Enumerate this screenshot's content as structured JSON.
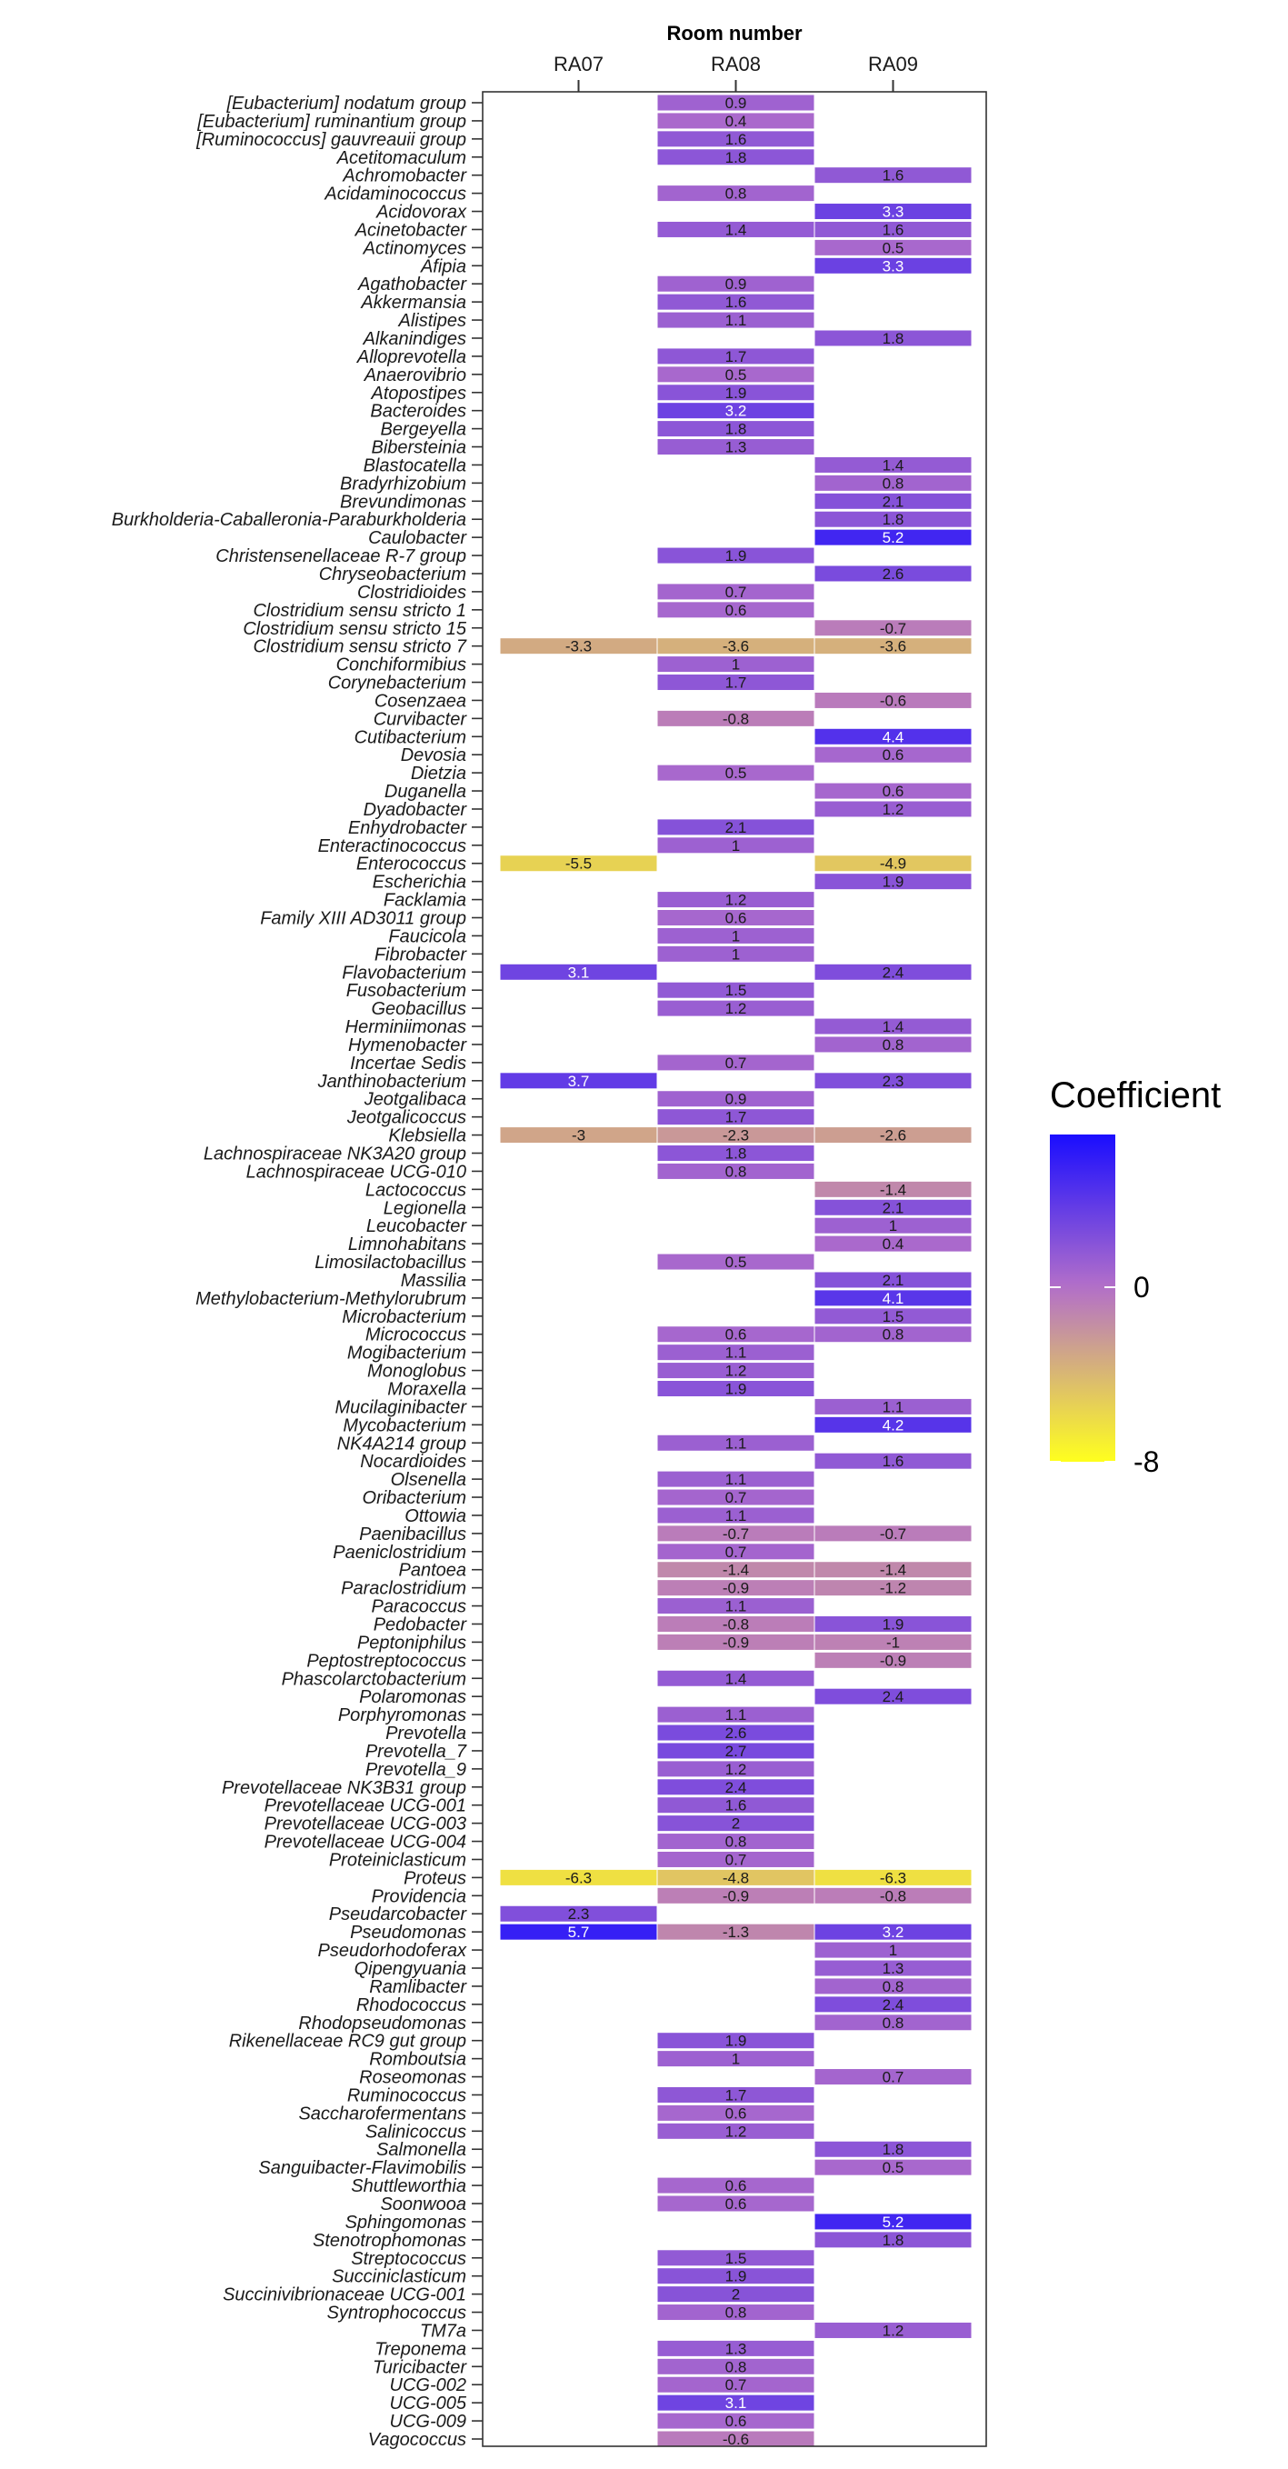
{
  "chart_data": {
    "type": "heatmap",
    "title": "Room number",
    "columns": [
      "RA07",
      "RA08",
      "RA09"
    ],
    "legend": {
      "title": "Coefficient",
      "tick_labels": [
        "0",
        "-8"
      ],
      "ticks": [
        0,
        -8
      ],
      "range": [
        -8,
        7
      ],
      "low_color": "#ffff1e",
      "mid_color": "#b36fc9",
      "high_color": "#1a0dff"
    },
    "rows": [
      {
        "genus": "[Eubacterium] nodatum group",
        "values": [
          null,
          0.9,
          null
        ]
      },
      {
        "genus": "[Eubacterium] ruminantium group",
        "values": [
          null,
          0.4,
          null
        ]
      },
      {
        "genus": "[Ruminococcus] gauvreauii group",
        "values": [
          null,
          1.6,
          null
        ]
      },
      {
        "genus": "Acetitomaculum",
        "values": [
          null,
          1.8,
          null
        ]
      },
      {
        "genus": "Achromobacter",
        "values": [
          null,
          null,
          1.6
        ]
      },
      {
        "genus": "Acidaminococcus",
        "values": [
          null,
          0.8,
          null
        ]
      },
      {
        "genus": "Acidovorax",
        "values": [
          null,
          null,
          3.3
        ]
      },
      {
        "genus": "Acinetobacter",
        "values": [
          null,
          1.4,
          1.6
        ]
      },
      {
        "genus": "Actinomyces",
        "values": [
          null,
          null,
          0.5
        ]
      },
      {
        "genus": "Afipia",
        "values": [
          null,
          null,
          3.3
        ]
      },
      {
        "genus": "Agathobacter",
        "values": [
          null,
          0.9,
          null
        ]
      },
      {
        "genus": "Akkermansia",
        "values": [
          null,
          1.6,
          null
        ]
      },
      {
        "genus": "Alistipes",
        "values": [
          null,
          1.1,
          null
        ]
      },
      {
        "genus": "Alkanindiges",
        "values": [
          null,
          null,
          1.8
        ]
      },
      {
        "genus": "Alloprevotella",
        "values": [
          null,
          1.7,
          null
        ]
      },
      {
        "genus": "Anaerovibrio",
        "values": [
          null,
          0.5,
          null
        ]
      },
      {
        "genus": "Atopostipes",
        "values": [
          null,
          1.9,
          null
        ]
      },
      {
        "genus": "Bacteroides",
        "values": [
          null,
          3.2,
          null
        ]
      },
      {
        "genus": "Bergeyella",
        "values": [
          null,
          1.8,
          null
        ]
      },
      {
        "genus": "Bibersteinia",
        "values": [
          null,
          1.3,
          null
        ]
      },
      {
        "genus": "Blastocatella",
        "values": [
          null,
          null,
          1.4
        ]
      },
      {
        "genus": "Bradyrhizobium",
        "values": [
          null,
          null,
          0.8
        ]
      },
      {
        "genus": "Brevundimonas",
        "values": [
          null,
          null,
          2.1
        ]
      },
      {
        "genus": "Burkholderia-Caballeronia-Paraburkholderia",
        "values": [
          null,
          null,
          1.8
        ]
      },
      {
        "genus": "Caulobacter",
        "values": [
          null,
          null,
          5.2
        ]
      },
      {
        "genus": "Christensenellaceae R-7 group",
        "values": [
          null,
          1.9,
          null
        ]
      },
      {
        "genus": "Chryseobacterium",
        "values": [
          null,
          null,
          2.6
        ]
      },
      {
        "genus": "Clostridioides",
        "values": [
          null,
          0.7,
          null
        ]
      },
      {
        "genus": "Clostridium sensu stricto 1",
        "values": [
          null,
          0.6,
          null
        ]
      },
      {
        "genus": "Clostridium sensu stricto 15",
        "values": [
          null,
          null,
          -0.7
        ]
      },
      {
        "genus": "Clostridium sensu stricto 7",
        "values": [
          -3.3,
          -3.6,
          -3.6
        ]
      },
      {
        "genus": "Conchiformibius",
        "values": [
          null,
          1,
          null
        ]
      },
      {
        "genus": "Corynebacterium",
        "values": [
          null,
          1.7,
          null
        ]
      },
      {
        "genus": "Cosenzaea",
        "values": [
          null,
          null,
          -0.6
        ]
      },
      {
        "genus": "Curvibacter",
        "values": [
          null,
          -0.8,
          null
        ]
      },
      {
        "genus": "Cutibacterium",
        "values": [
          null,
          null,
          4.4
        ]
      },
      {
        "genus": "Devosia",
        "values": [
          null,
          null,
          0.6
        ]
      },
      {
        "genus": "Dietzia",
        "values": [
          null,
          0.5,
          null
        ]
      },
      {
        "genus": "Duganella",
        "values": [
          null,
          null,
          0.6
        ]
      },
      {
        "genus": "Dyadobacter",
        "values": [
          null,
          null,
          1.2
        ]
      },
      {
        "genus": "Enhydrobacter",
        "values": [
          null,
          2.1,
          null
        ]
      },
      {
        "genus": "Enteractinococcus",
        "values": [
          null,
          1,
          null
        ]
      },
      {
        "genus": "Enterococcus",
        "values": [
          -5.5,
          null,
          -4.9
        ]
      },
      {
        "genus": "Escherichia",
        "values": [
          null,
          null,
          1.9
        ]
      },
      {
        "genus": "Facklamia",
        "values": [
          null,
          1.2,
          null
        ]
      },
      {
        "genus": "Family XIII AD3011 group",
        "values": [
          null,
          0.6,
          null
        ]
      },
      {
        "genus": "Faucicola",
        "values": [
          null,
          1,
          null
        ]
      },
      {
        "genus": "Fibrobacter",
        "values": [
          null,
          1,
          null
        ]
      },
      {
        "genus": "Flavobacterium",
        "values": [
          3.1,
          null,
          2.4
        ]
      },
      {
        "genus": "Fusobacterium",
        "values": [
          null,
          1.5,
          null
        ]
      },
      {
        "genus": "Geobacillus",
        "values": [
          null,
          1.2,
          null
        ]
      },
      {
        "genus": "Herminiimonas",
        "values": [
          null,
          null,
          1.4
        ]
      },
      {
        "genus": "Hymenobacter",
        "values": [
          null,
          null,
          0.8
        ]
      },
      {
        "genus": "Incertae Sedis",
        "values": [
          null,
          0.7,
          null
        ]
      },
      {
        "genus": "Janthinobacterium",
        "values": [
          3.7,
          null,
          2.3
        ]
      },
      {
        "genus": "Jeotgalibaca",
        "values": [
          null,
          0.9,
          null
        ]
      },
      {
        "genus": "Jeotgalicoccus",
        "values": [
          null,
          1.7,
          null
        ]
      },
      {
        "genus": "Klebsiella",
        "values": [
          -3,
          -2.3,
          -2.6
        ]
      },
      {
        "genus": "Lachnospiraceae NK3A20 group",
        "values": [
          null,
          1.8,
          null
        ]
      },
      {
        "genus": "Lachnospiraceae UCG-010",
        "values": [
          null,
          0.8,
          null
        ]
      },
      {
        "genus": "Lactococcus",
        "values": [
          null,
          null,
          -1.4
        ]
      },
      {
        "genus": "Legionella",
        "values": [
          null,
          null,
          2.1
        ]
      },
      {
        "genus": "Leucobacter",
        "values": [
          null,
          null,
          1
        ]
      },
      {
        "genus": "Limnohabitans",
        "values": [
          null,
          null,
          0.4
        ]
      },
      {
        "genus": "Limosilactobacillus",
        "values": [
          null,
          0.5,
          null
        ]
      },
      {
        "genus": "Massilia",
        "values": [
          null,
          null,
          2.1
        ]
      },
      {
        "genus": "Methylobacterium-Methylorubrum",
        "values": [
          null,
          null,
          4.1
        ]
      },
      {
        "genus": "Microbacterium",
        "values": [
          null,
          null,
          1.5
        ]
      },
      {
        "genus": "Micrococcus",
        "values": [
          null,
          0.6,
          0.8
        ]
      },
      {
        "genus": "Mogibacterium",
        "values": [
          null,
          1.1,
          null
        ]
      },
      {
        "genus": "Monoglobus",
        "values": [
          null,
          1.2,
          null
        ]
      },
      {
        "genus": "Moraxella",
        "values": [
          null,
          1.9,
          null
        ]
      },
      {
        "genus": "Mucilaginibacter",
        "values": [
          null,
          null,
          1.1
        ]
      },
      {
        "genus": "Mycobacterium",
        "values": [
          null,
          null,
          4.2
        ]
      },
      {
        "genus": "NK4A214 group",
        "values": [
          null,
          1.1,
          null
        ]
      },
      {
        "genus": "Nocardioides",
        "values": [
          null,
          null,
          1.6
        ]
      },
      {
        "genus": "Olsenella",
        "values": [
          null,
          1.1,
          null
        ]
      },
      {
        "genus": "Oribacterium",
        "values": [
          null,
          0.7,
          null
        ]
      },
      {
        "genus": "Ottowia",
        "values": [
          null,
          1.1,
          null
        ]
      },
      {
        "genus": "Paenibacillus",
        "values": [
          null,
          -0.7,
          -0.7
        ]
      },
      {
        "genus": "Paeniclostridium",
        "values": [
          null,
          0.7,
          null
        ]
      },
      {
        "genus": "Pantoea",
        "values": [
          null,
          -1.4,
          -1.4
        ]
      },
      {
        "genus": "Paraclostridium",
        "values": [
          null,
          -0.9,
          -1.2
        ]
      },
      {
        "genus": "Paracoccus",
        "values": [
          null,
          1.1,
          null
        ]
      },
      {
        "genus": "Pedobacter",
        "values": [
          null,
          -0.8,
          1.9
        ]
      },
      {
        "genus": "Peptoniphilus",
        "values": [
          null,
          -0.9,
          -1
        ]
      },
      {
        "genus": "Peptostreptococcus",
        "values": [
          null,
          null,
          -0.9
        ]
      },
      {
        "genus": "Phascolarctobacterium",
        "values": [
          null,
          1.4,
          null
        ]
      },
      {
        "genus": "Polaromonas",
        "values": [
          null,
          null,
          2.4
        ]
      },
      {
        "genus": "Porphyromonas",
        "values": [
          null,
          1.1,
          null
        ]
      },
      {
        "genus": "Prevotella",
        "values": [
          null,
          2.6,
          null
        ]
      },
      {
        "genus": "Prevotella_7",
        "values": [
          null,
          2.7,
          null
        ]
      },
      {
        "genus": "Prevotella_9",
        "values": [
          null,
          1.2,
          null
        ]
      },
      {
        "genus": "Prevotellaceae NK3B31 group",
        "values": [
          null,
          2.4,
          null
        ]
      },
      {
        "genus": "Prevotellaceae UCG-001",
        "values": [
          null,
          1.6,
          null
        ]
      },
      {
        "genus": "Prevotellaceae UCG-003",
        "values": [
          null,
          2,
          null
        ]
      },
      {
        "genus": "Prevotellaceae UCG-004",
        "values": [
          null,
          0.8,
          null
        ]
      },
      {
        "genus": "Proteiniclasticum",
        "values": [
          null,
          0.7,
          null
        ]
      },
      {
        "genus": "Proteus",
        "values": [
          -6.3,
          -4.8,
          -6.3
        ]
      },
      {
        "genus": "Providencia",
        "values": [
          null,
          -0.9,
          -0.8
        ]
      },
      {
        "genus": "Pseudarcobacter",
        "values": [
          2.3,
          null,
          null
        ]
      },
      {
        "genus": "Pseudomonas",
        "values": [
          5.7,
          -1.3,
          3.2
        ]
      },
      {
        "genus": "Pseudorhodoferax",
        "values": [
          null,
          null,
          1
        ]
      },
      {
        "genus": "Qipengyuania",
        "values": [
          null,
          null,
          1.3
        ]
      },
      {
        "genus": "Ramlibacter",
        "values": [
          null,
          null,
          0.8
        ]
      },
      {
        "genus": "Rhodococcus",
        "values": [
          null,
          null,
          2.4
        ]
      },
      {
        "genus": "Rhodopseudomonas",
        "values": [
          null,
          null,
          0.8
        ]
      },
      {
        "genus": "Rikenellaceae RC9 gut group",
        "values": [
          null,
          1.9,
          null
        ]
      },
      {
        "genus": "Romboutsia",
        "values": [
          null,
          1,
          null
        ]
      },
      {
        "genus": "Roseomonas",
        "values": [
          null,
          null,
          0.7
        ]
      },
      {
        "genus": "Ruminococcus",
        "values": [
          null,
          1.7,
          null
        ]
      },
      {
        "genus": "Saccharofermentans",
        "values": [
          null,
          0.6,
          null
        ]
      },
      {
        "genus": "Salinicoccus",
        "values": [
          null,
          1.2,
          null
        ]
      },
      {
        "genus": "Salmonella",
        "values": [
          null,
          null,
          1.8
        ]
      },
      {
        "genus": "Sanguibacter-Flavimobilis",
        "values": [
          null,
          null,
          0.5
        ]
      },
      {
        "genus": "Shuttleworthia",
        "values": [
          null,
          0.6,
          null
        ]
      },
      {
        "genus": "Soonwooa",
        "values": [
          null,
          0.6,
          null
        ]
      },
      {
        "genus": "Sphingomonas",
        "values": [
          null,
          null,
          5.2
        ]
      },
      {
        "genus": "Stenotrophomonas",
        "values": [
          null,
          null,
          1.8
        ]
      },
      {
        "genus": "Streptococcus",
        "values": [
          null,
          1.5,
          null
        ]
      },
      {
        "genus": "Succiniclasticum",
        "values": [
          null,
          1.9,
          null
        ]
      },
      {
        "genus": "Succinivibrionaceae UCG-001",
        "values": [
          null,
          2,
          null
        ]
      },
      {
        "genus": "Syntrophococcus",
        "values": [
          null,
          0.8,
          null
        ]
      },
      {
        "genus": "TM7a",
        "values": [
          null,
          null,
          1.2
        ]
      },
      {
        "genus": "Treponema",
        "values": [
          null,
          1.3,
          null
        ]
      },
      {
        "genus": "Turicibacter",
        "values": [
          null,
          0.8,
          null
        ]
      },
      {
        "genus": "UCG-002",
        "values": [
          null,
          0.7,
          null
        ]
      },
      {
        "genus": "UCG-005",
        "values": [
          null,
          3.1,
          null
        ]
      },
      {
        "genus": "UCG-009",
        "values": [
          null,
          0.6,
          null
        ]
      },
      {
        "genus": "Vagococcus",
        "values": [
          null,
          -0.6,
          null
        ]
      }
    ]
  }
}
